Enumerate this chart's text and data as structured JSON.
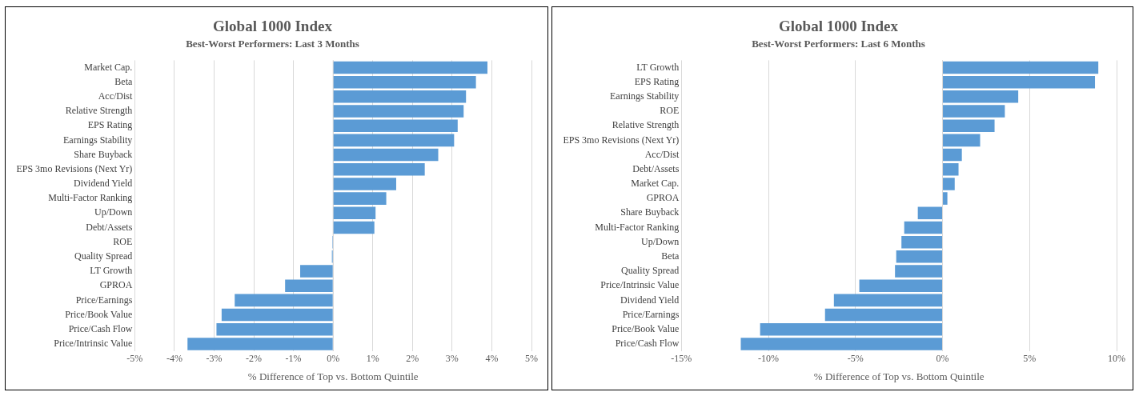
{
  "chart_data": [
    {
      "type": "bar",
      "orientation": "horizontal",
      "title": "Global 1000 Index",
      "subtitle": "Best-Worst Performers: Last 3 Months",
      "xlabel": "% Difference of Top vs. Bottom Quintile",
      "categories": [
        "Market Cap.",
        "Beta",
        "Acc/Dist",
        "Relative Strength",
        "EPS Rating",
        "Earnings Stability",
        "Share Buyback",
        "EPS 3mo Revisions (Next Yr)",
        "Dividend Yield",
        "Multi-Factor Ranking",
        "Up/Down",
        "Debt/Assets",
        "ROE",
        "Quality Spread",
        "LT Growth",
        "GPROA",
        "Price/Earnings",
        "Price/Book Value",
        "Price/Cash Flow",
        "Price/Intrinsic Value"
      ],
      "values": [
        3.89,
        3.6,
        3.35,
        3.29,
        3.14,
        3.05,
        2.65,
        2.31,
        1.59,
        1.34,
        1.07,
        1.04,
        -0.02,
        -0.03,
        -0.83,
        -1.21,
        -2.48,
        -2.81,
        -2.94,
        -3.67
      ],
      "color": "#5b9bd5",
      "xlim": [
        -5,
        5
      ],
      "xticks": [
        {
          "value": -5,
          "label": "-5%"
        },
        {
          "value": -4,
          "label": "-4%"
        },
        {
          "value": -3,
          "label": "-3%"
        },
        {
          "value": -2,
          "label": "-2%"
        },
        {
          "value": -1,
          "label": "-1%"
        },
        {
          "value": 0,
          "label": "0%"
        },
        {
          "value": 1,
          "label": "1%"
        },
        {
          "value": 2,
          "label": "2%"
        },
        {
          "value": 3,
          "label": "3%"
        },
        {
          "value": 4,
          "label": "4%"
        },
        {
          "value": 5,
          "label": "5%"
        }
      ],
      "grid": "x"
    },
    {
      "type": "bar",
      "orientation": "horizontal",
      "title": "Global 1000 Index",
      "subtitle": "Best-Worst Performers: Last 6 Months",
      "xlabel": "% Difference of Top vs. Bottom Quintile",
      "categories": [
        "LT Growth",
        "EPS Rating",
        "Earnings Stability",
        "ROE",
        "Relative Strength",
        "EPS 3mo Revisions (Next Yr)",
        "Acc/Dist",
        "Debt/Assets",
        "Market Cap.",
        "GPROA",
        "Share Buyback",
        "Multi-Factor Ranking",
        "Up/Down",
        "Beta",
        "Quality Spread",
        "Price/Intrinsic Value",
        "Dividend Yield",
        "Price/Earnings",
        "Price/Book Value",
        "Price/Cash Flow"
      ],
      "values": [
        8.95,
        8.76,
        4.35,
        3.58,
        2.99,
        2.16,
        1.11,
        0.92,
        0.7,
        0.28,
        -1.42,
        -2.2,
        -2.36,
        -2.66,
        -2.73,
        -4.78,
        -6.24,
        -6.75,
        -10.48,
        -11.59
      ],
      "color": "#5b9bd5",
      "xlim": [
        -15,
        10
      ],
      "xticks": [
        {
          "value": -15,
          "label": "-15%"
        },
        {
          "value": -10,
          "label": "-10%"
        },
        {
          "value": -5,
          "label": "-5%"
        },
        {
          "value": 0,
          "label": "0%"
        },
        {
          "value": 5,
          "label": "5%"
        },
        {
          "value": 10,
          "label": "10%"
        }
      ],
      "grid": "x"
    }
  ]
}
